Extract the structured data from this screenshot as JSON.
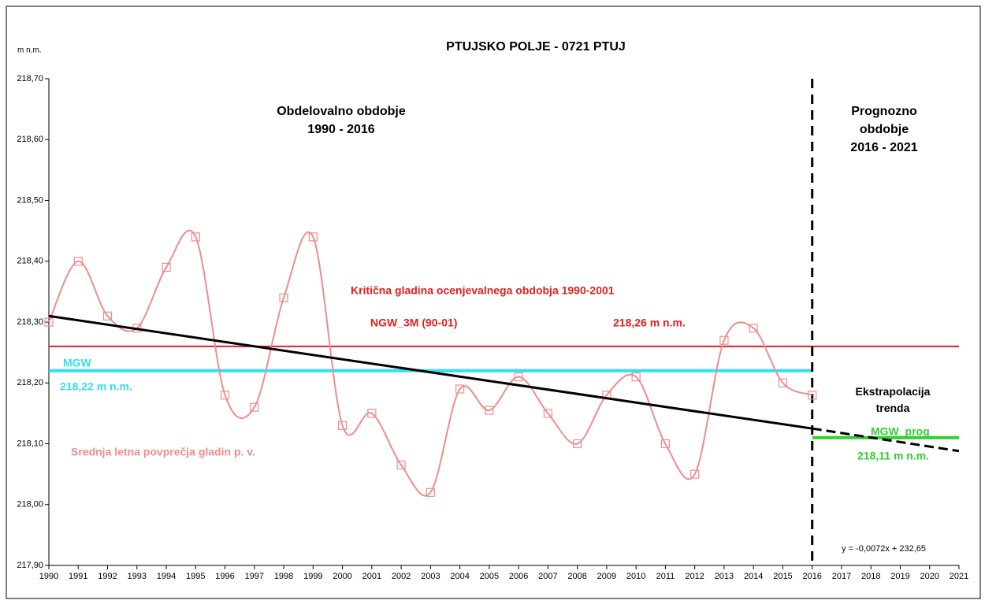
{
  "chart_data": {
    "type": "line",
    "title": "PTUJSKO POLJE - 0721 PTUJ",
    "y_unit": "m n.m.",
    "xlim": [
      1990,
      2021
    ],
    "xticks": [
      1990,
      1991,
      1992,
      1993,
      1994,
      1995,
      1996,
      1997,
      1998,
      1999,
      2000,
      2001,
      2002,
      2003,
      2004,
      2005,
      2006,
      2007,
      2008,
      2009,
      2010,
      2011,
      2012,
      2013,
      2014,
      2015,
      2016,
      2017,
      2018,
      2019,
      2020,
      2021
    ],
    "ylim": [
      217.9,
      218.7
    ],
    "yticks": [
      {
        "value": 217.9,
        "label": "217,90"
      },
      {
        "value": 218.0,
        "label": "218,00"
      },
      {
        "value": 218.1,
        "label": "218,10"
      },
      {
        "value": 218.2,
        "label": "218,20"
      },
      {
        "value": 218.3,
        "label": "218,30"
      },
      {
        "value": 218.4,
        "label": "218,40"
      },
      {
        "value": 218.5,
        "label": "218,50"
      },
      {
        "value": 218.6,
        "label": "218,60"
      },
      {
        "value": 218.7,
        "label": "218,70"
      }
    ],
    "series": [
      {
        "name": "Srednja letna povprečja gladin p. v.",
        "color": "#f08c8c",
        "smooth": true,
        "marker": "square",
        "x": [
          1990,
          1991,
          1992,
          1993,
          1994,
          1995,
          1996,
          1997,
          1998,
          1999,
          2000,
          2001,
          2002,
          2003,
          2004,
          2005,
          2006,
          2007,
          2008,
          2009,
          2010,
          2011,
          2012,
          2013,
          2014,
          2015,
          2016
        ],
        "values": [
          218.3,
          218.4,
          218.31,
          218.29,
          218.39,
          218.44,
          218.18,
          218.16,
          218.34,
          218.44,
          218.13,
          218.15,
          218.065,
          218.02,
          218.19,
          218.155,
          218.21,
          218.15,
          218.1,
          218.18,
          218.21,
          218.1,
          218.05,
          218.27,
          218.29,
          218.2,
          218.18
        ]
      },
      {
        "color": "#000000",
        "dash": false,
        "x": [
          1990,
          2016
        ],
        "values": [
          218.31,
          218.125
        ]
      },
      {
        "name": "Ekstrapolacija trenda",
        "color": "#000000",
        "dash": true,
        "x": [
          2016,
          2021
        ],
        "values": [
          218.125,
          218.088
        ]
      }
    ],
    "reference_lines": [
      {
        "name": "NGW_3M (90-01)",
        "value": 218.26,
        "value_label": "218,26 m n.m.",
        "color": "#e02020",
        "x_range": [
          1990,
          2021
        ]
      },
      {
        "name": "MGW",
        "value": 218.22,
        "value_label": "218,22 m n.m.",
        "color": "#30e0f0",
        "x_range": [
          1990,
          2016
        ]
      },
      {
        "name": "MGW_prog",
        "value": 218.11,
        "value_label": "218,11 m n.m.",
        "color": "#30d030",
        "x_range": [
          2016,
          2021
        ]
      }
    ],
    "divider_x": 2016,
    "annotations": [
      {
        "text": "Obdelovalno obdobje",
        "color": "#000000"
      },
      {
        "text": "1990 - 2016",
        "color": "#000000"
      },
      {
        "text": "Prognozno",
        "color": "#000000"
      },
      {
        "text": "obdobje",
        "color": "#000000"
      },
      {
        "text": "2016 - 2021",
        "color": "#000000"
      },
      {
        "text": "Kritična gladina ocenjevalnega obdobja 1990-2001",
        "color": "#e02020"
      },
      {
        "text": "y = -0,0072x + 232,65",
        "color": "#000000"
      }
    ]
  }
}
